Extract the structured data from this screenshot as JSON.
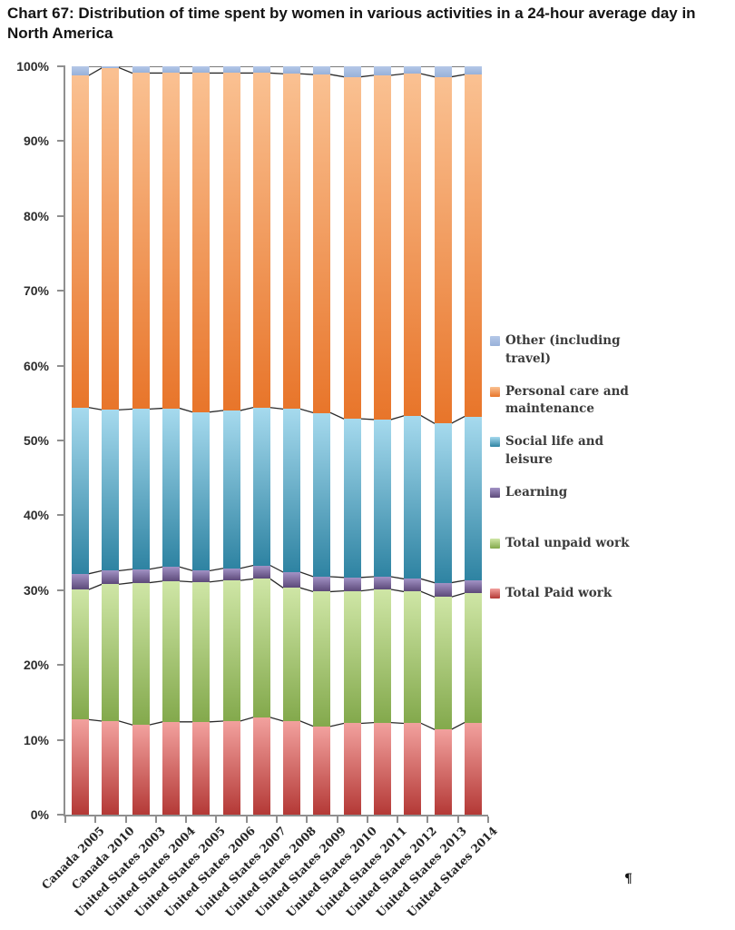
{
  "title": {
    "text": "Chart 67: Distribution of time spent by women in various activities in a 24-hour average day in\nNorth America"
  },
  "pilcrow": "¶",
  "chart_data": {
    "type": "bar",
    "subtype": "100-percent-stacked-column",
    "unit": "percent",
    "grid": false,
    "connector_lines": true,
    "line_color": "#2a2a2a",
    "axis_color": "#8f8f8f",
    "categories": [
      "Canada 2005",
      "Canada 2010",
      "United States 2003",
      "United States 2004",
      "United States 2005",
      "United States 2006",
      "United States 2007",
      "United States 2008",
      "United States 2009",
      "United States 2010",
      "United States 2011",
      "United States 2012",
      "United States 2013",
      "United States 2014"
    ],
    "series": [
      {
        "name": "Total Paid work",
        "values": [
          12.7,
          12.5,
          12.0,
          12.4,
          12.4,
          12.5,
          13.0,
          12.5,
          11.8,
          12.2,
          12.3,
          12.2,
          11.4,
          12.3
        ],
        "gradient_top": "#F2A19E",
        "gradient_bottom": "#B43936",
        "swatch": "#C8504C"
      },
      {
        "name": "Total unpaid work",
        "values": [
          17.4,
          18.3,
          19.0,
          18.8,
          18.7,
          18.8,
          18.5,
          17.8,
          18.0,
          17.7,
          17.8,
          17.6,
          17.7,
          17.3
        ],
        "gradient_top": "#CFE6A6",
        "gradient_bottom": "#83A94C",
        "swatch": "#A3C66B"
      },
      {
        "name": "Learning",
        "values": [
          2.1,
          1.8,
          1.8,
          1.9,
          1.5,
          1.6,
          1.8,
          2.1,
          2.0,
          1.8,
          1.7,
          1.7,
          1.9,
          1.7
        ],
        "gradient_top": "#A292C5",
        "gradient_bottom": "#5D4A7A",
        "swatch": "#8168A5"
      },
      {
        "name": "Social life and leisure",
        "values": [
          22.2,
          21.5,
          21.4,
          21.2,
          21.2,
          21.1,
          21.1,
          21.8,
          21.9,
          21.2,
          21.0,
          21.8,
          21.3,
          21.9
        ],
        "gradient_top": "#A6DAEE",
        "gradient_bottom": "#2E83A2",
        "swatch": "#4FAECB"
      },
      {
        "name": "Personal care and maintenance",
        "values": [
          44.4,
          45.7,
          44.9,
          44.8,
          45.3,
          45.1,
          44.7,
          44.8,
          45.2,
          45.7,
          46.0,
          45.7,
          46.3,
          45.7
        ],
        "gradient_top": "#FAC192",
        "gradient_bottom": "#E8752A",
        "swatch": "#EC8138"
      },
      {
        "name": "Other (including travel)",
        "values": [
          1.2,
          0.2,
          0.9,
          0.9,
          0.9,
          0.9,
          0.9,
          1.0,
          1.1,
          1.4,
          1.2,
          1.0,
          1.4,
          1.1
        ],
        "gradient_top": "#B5C8E8",
        "gradient_bottom": "#98B1D9",
        "swatch": "#A4BADF"
      }
    ],
    "y_axis": {
      "min": 0,
      "max": 100,
      "tick_step": 10,
      "tick_labels": [
        "0%",
        "10%",
        "20%",
        "30%",
        "40%",
        "50%",
        "60%",
        "70%",
        "80%",
        "90%",
        "100%"
      ]
    },
    "legend": {
      "position": "right",
      "items": [
        {
          "series": "Other (including travel)",
          "label_lines": "Other (including\ntravel)"
        },
        {
          "series": "Personal care and maintenance",
          "label_lines": "Personal care and\nmaintenance"
        },
        {
          "series": "Social life and leisure",
          "label_lines": "Social life and\nleisure"
        },
        {
          "series": "Learning",
          "label_lines": "Learning"
        },
        {
          "series": "Total unpaid work",
          "label_lines": "Total unpaid work"
        },
        {
          "series": "Total Paid work",
          "label_lines": "Total Paid work"
        }
      ]
    }
  }
}
